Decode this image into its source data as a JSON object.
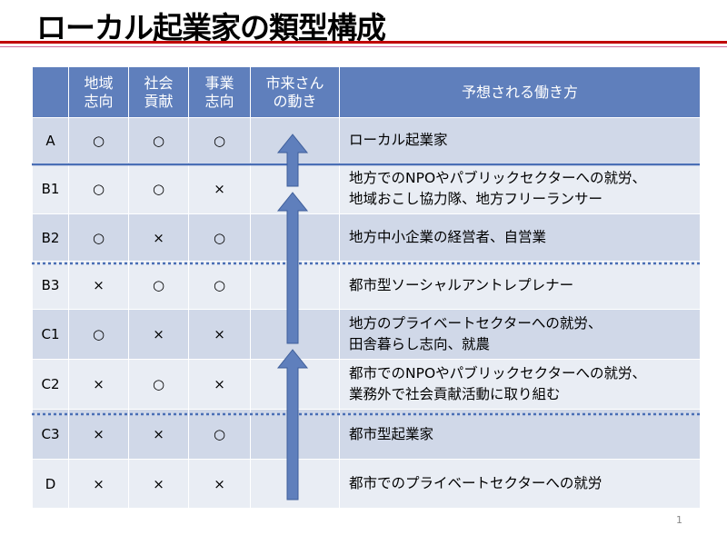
{
  "title": "ローカル起業家の類型構成",
  "page_number": "1",
  "colors": {
    "header": "#5f7fbc",
    "row_dark": "#d0d8e8",
    "row_light": "#e9edf4",
    "title_rule": "#c00000",
    "arrow": "#5f7fbc"
  },
  "table": {
    "headers": [
      "",
      "地域\n志向",
      "社会\n貢献",
      "事業\n志向",
      "市来さん\nの動き",
      "予想される働き方"
    ],
    "rows": [
      {
        "id": "A",
        "c1": "○",
        "c2": "○",
        "c3": "○",
        "desc": "ローカル起業家"
      },
      {
        "id": "B1",
        "c1": "○",
        "c2": "○",
        "c3": "×",
        "desc": "地方でのNPOやパブリックセクターへの就労、\n地域おこし協力隊、地方フリーランサー"
      },
      {
        "id": "B2",
        "c1": "○",
        "c2": "×",
        "c3": "○",
        "desc": "地方中小企業の経営者、自営業"
      },
      {
        "id": "B3",
        "c1": "×",
        "c2": "○",
        "c3": "○",
        "desc": "都市型ソーシャルアントレプレナー"
      },
      {
        "id": "C1",
        "c1": "○",
        "c2": "×",
        "c3": "×",
        "desc": "地方のプライベートセクターへの就労、\n田舎暮らし志向、就農"
      },
      {
        "id": "C2",
        "c1": "×",
        "c2": "○",
        "c3": "×",
        "desc": "都市でのNPOやパブリックセクターへの就労、\n業務外で社会貢献活動に取り組む"
      },
      {
        "id": "C3",
        "c1": "×",
        "c2": "×",
        "c3": "○",
        "desc": "都市型起業家"
      },
      {
        "id": "D",
        "c1": "×",
        "c2": "×",
        "c3": "×",
        "desc": "都市でのプライベートセクターへの就労"
      }
    ]
  }
}
